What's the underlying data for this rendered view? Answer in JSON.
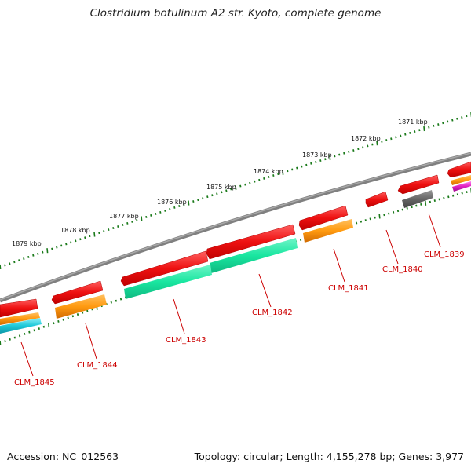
{
  "title": "Clostridium botulinum A2 str. Kyoto, complete genome",
  "footer": {
    "accession": "Accession: NC_012563",
    "topology": "Topology: circular; Length: 4,155,278 bp; Genes: 3,977"
  },
  "scale_labels": [
    "1871 kbp",
    "1872 kbp",
    "1873 kbp",
    "1874 kbp",
    "1875 kbp",
    "1876 kbp",
    "1877 kbp",
    "1878 kbp",
    "1879 kbp"
  ],
  "gene_labels": [
    "CLM_1839",
    "CLM_1840",
    "CLM_1841",
    "CLM_1842",
    "CLM_1843",
    "CLM_1844",
    "CLM_1845"
  ],
  "colors": {
    "red": "#ee1111",
    "orange": "#ff8c00",
    "green": "#19e6a0",
    "cyan": "#1cc8d8",
    "gray": "#666666",
    "magenta": "#e020c0",
    "backbone": "#808080",
    "tick": "#1a7a1a",
    "label": "#cc0000"
  }
}
